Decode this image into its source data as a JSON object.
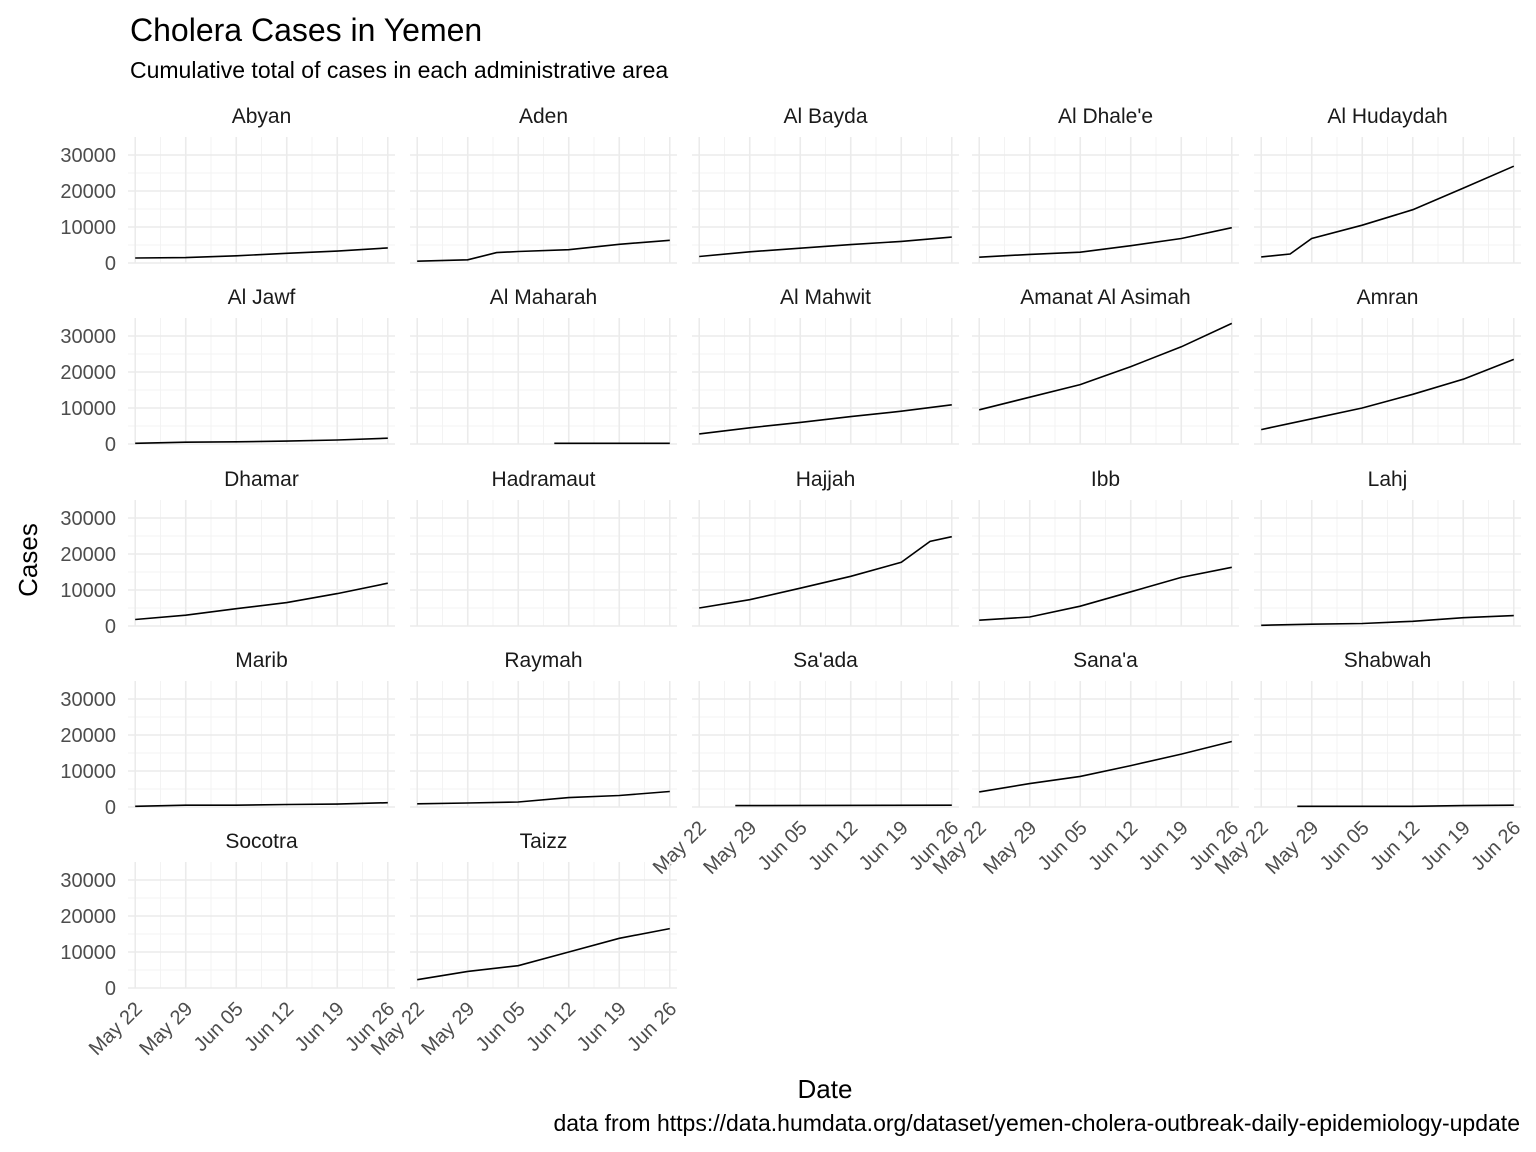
{
  "chart_data": {
    "type": "line",
    "title": "Cholera Cases in Yemen",
    "subtitle": "Cumulative total of cases in each administrative area",
    "xlabel": "Date",
    "ylabel": "Cases",
    "caption": "data from https://data.humdata.org/dataset/yemen-cholera-outbreak-daily-epidemiology-update",
    "xlim": [
      "2017-05-21",
      "2017-06-27"
    ],
    "ylim": [
      0,
      35000
    ],
    "x_ticks": [
      "May 22",
      "May 29",
      "Jun 05",
      "Jun 12",
      "Jun 19",
      "Jun 26"
    ],
    "y_ticks": [
      "0",
      "10000",
      "20000",
      "30000"
    ],
    "grid": true,
    "legend": "none",
    "facets": [
      {
        "name": "Abyan",
        "series": [
          {
            "date": "2017-05-22",
            "cases": 1400
          },
          {
            "date": "2017-05-29",
            "cases": 1500
          },
          {
            "date": "2017-06-05",
            "cases": 2000
          },
          {
            "date": "2017-06-12",
            "cases": 2700
          },
          {
            "date": "2017-06-19",
            "cases": 3300
          },
          {
            "date": "2017-06-26",
            "cases": 4200
          }
        ]
      },
      {
        "name": "Aden",
        "series": [
          {
            "date": "2017-05-22",
            "cases": 500
          },
          {
            "date": "2017-05-29",
            "cases": 900
          },
          {
            "date": "2017-06-02",
            "cases": 2900
          },
          {
            "date": "2017-06-05",
            "cases": 3200
          },
          {
            "date": "2017-06-12",
            "cases": 3700
          },
          {
            "date": "2017-06-19",
            "cases": 5200
          },
          {
            "date": "2017-06-26",
            "cases": 6300
          }
        ]
      },
      {
        "name": "Al Bayda",
        "series": [
          {
            "date": "2017-05-22",
            "cases": 1800
          },
          {
            "date": "2017-05-29",
            "cases": 3100
          },
          {
            "date": "2017-06-05",
            "cases": 4100
          },
          {
            "date": "2017-06-12",
            "cases": 5100
          },
          {
            "date": "2017-06-19",
            "cases": 6000
          },
          {
            "date": "2017-06-26",
            "cases": 7200
          }
        ]
      },
      {
        "name": "Al Dhale'e",
        "series": [
          {
            "date": "2017-05-22",
            "cases": 1600
          },
          {
            "date": "2017-05-29",
            "cases": 2400
          },
          {
            "date": "2017-06-05",
            "cases": 3000
          },
          {
            "date": "2017-06-12",
            "cases": 4800
          },
          {
            "date": "2017-06-19",
            "cases": 6800
          },
          {
            "date": "2017-06-26",
            "cases": 9800
          }
        ]
      },
      {
        "name": "Al Hudaydah",
        "series": [
          {
            "date": "2017-05-22",
            "cases": 1700
          },
          {
            "date": "2017-05-26",
            "cases": 2500
          },
          {
            "date": "2017-05-29",
            "cases": 6800
          },
          {
            "date": "2017-06-05",
            "cases": 10500
          },
          {
            "date": "2017-06-12",
            "cases": 14800
          },
          {
            "date": "2017-06-19",
            "cases": 20800
          },
          {
            "date": "2017-06-26",
            "cases": 26900
          }
        ]
      },
      {
        "name": "Al Jawf",
        "series": [
          {
            "date": "2017-05-22",
            "cases": 200
          },
          {
            "date": "2017-05-29",
            "cases": 500
          },
          {
            "date": "2017-06-05",
            "cases": 600
          },
          {
            "date": "2017-06-12",
            "cases": 800
          },
          {
            "date": "2017-06-19",
            "cases": 1100
          },
          {
            "date": "2017-06-26",
            "cases": 1600
          }
        ]
      },
      {
        "name": "Al Maharah",
        "series": [
          {
            "date": "2017-06-10",
            "cases": 200
          },
          {
            "date": "2017-06-26",
            "cases": 200
          }
        ]
      },
      {
        "name": "Al Mahwit",
        "series": [
          {
            "date": "2017-05-22",
            "cases": 2800
          },
          {
            "date": "2017-05-29",
            "cases": 4500
          },
          {
            "date": "2017-06-05",
            "cases": 6000
          },
          {
            "date": "2017-06-12",
            "cases": 7600
          },
          {
            "date": "2017-06-19",
            "cases": 9100
          },
          {
            "date": "2017-06-26",
            "cases": 10900
          }
        ]
      },
      {
        "name": "Amanat Al Asimah",
        "series": [
          {
            "date": "2017-05-22",
            "cases": 9500
          },
          {
            "date": "2017-05-29",
            "cases": 13000
          },
          {
            "date": "2017-06-05",
            "cases": 16500
          },
          {
            "date": "2017-06-12",
            "cases": 21500
          },
          {
            "date": "2017-06-19",
            "cases": 27000
          },
          {
            "date": "2017-06-26",
            "cases": 33500
          }
        ]
      },
      {
        "name": "Amran",
        "series": [
          {
            "date": "2017-05-22",
            "cases": 4000
          },
          {
            "date": "2017-05-29",
            "cases": 7000
          },
          {
            "date": "2017-06-05",
            "cases": 10000
          },
          {
            "date": "2017-06-12",
            "cases": 13800
          },
          {
            "date": "2017-06-19",
            "cases": 18000
          },
          {
            "date": "2017-06-26",
            "cases": 23500
          }
        ]
      },
      {
        "name": "Dhamar",
        "series": [
          {
            "date": "2017-05-22",
            "cases": 1800
          },
          {
            "date": "2017-05-29",
            "cases": 3000
          },
          {
            "date": "2017-06-05",
            "cases": 4800
          },
          {
            "date": "2017-06-12",
            "cases": 6500
          },
          {
            "date": "2017-06-19",
            "cases": 9000
          },
          {
            "date": "2017-06-26",
            "cases": 11900
          }
        ]
      },
      {
        "name": "Hadramaut",
        "series": []
      },
      {
        "name": "Hajjah",
        "series": [
          {
            "date": "2017-05-22",
            "cases": 5000
          },
          {
            "date": "2017-05-29",
            "cases": 7300
          },
          {
            "date": "2017-06-05",
            "cases": 10500
          },
          {
            "date": "2017-06-12",
            "cases": 13800
          },
          {
            "date": "2017-06-19",
            "cases": 17700
          },
          {
            "date": "2017-06-23",
            "cases": 23500
          },
          {
            "date": "2017-06-26",
            "cases": 24800
          }
        ]
      },
      {
        "name": "Ibb",
        "series": [
          {
            "date": "2017-05-22",
            "cases": 1600
          },
          {
            "date": "2017-05-29",
            "cases": 2500
          },
          {
            "date": "2017-06-05",
            "cases": 5500
          },
          {
            "date": "2017-06-12",
            "cases": 9500
          },
          {
            "date": "2017-06-19",
            "cases": 13500
          },
          {
            "date": "2017-06-26",
            "cases": 16300
          }
        ]
      },
      {
        "name": "Lahj",
        "series": [
          {
            "date": "2017-05-22",
            "cases": 200
          },
          {
            "date": "2017-05-29",
            "cases": 500
          },
          {
            "date": "2017-06-05",
            "cases": 700
          },
          {
            "date": "2017-06-12",
            "cases": 1300
          },
          {
            "date": "2017-06-19",
            "cases": 2300
          },
          {
            "date": "2017-06-26",
            "cases": 2900
          }
        ]
      },
      {
        "name": "Marib",
        "series": [
          {
            "date": "2017-05-22",
            "cases": 200
          },
          {
            "date": "2017-05-29",
            "cases": 500
          },
          {
            "date": "2017-06-05",
            "cases": 500
          },
          {
            "date": "2017-06-12",
            "cases": 700
          },
          {
            "date": "2017-06-19",
            "cases": 800
          },
          {
            "date": "2017-06-26",
            "cases": 1200
          }
        ]
      },
      {
        "name": "Raymah",
        "series": [
          {
            "date": "2017-05-22",
            "cases": 900
          },
          {
            "date": "2017-05-29",
            "cases": 1100
          },
          {
            "date": "2017-06-05",
            "cases": 1400
          },
          {
            "date": "2017-06-12",
            "cases": 2600
          },
          {
            "date": "2017-06-19",
            "cases": 3200
          },
          {
            "date": "2017-06-26",
            "cases": 4300
          }
        ]
      },
      {
        "name": "Sa'ada",
        "series": [
          {
            "date": "2017-05-27",
            "cases": 400
          },
          {
            "date": "2017-06-26",
            "cases": 500
          }
        ]
      },
      {
        "name": "Sana'a",
        "series": [
          {
            "date": "2017-05-22",
            "cases": 4200
          },
          {
            "date": "2017-05-29",
            "cases": 6500
          },
          {
            "date": "2017-06-05",
            "cases": 8500
          },
          {
            "date": "2017-06-12",
            "cases": 11500
          },
          {
            "date": "2017-06-19",
            "cases": 14700
          },
          {
            "date": "2017-06-26",
            "cases": 18200
          }
        ]
      },
      {
        "name": "Shabwah",
        "series": [
          {
            "date": "2017-05-27",
            "cases": 200
          },
          {
            "date": "2017-06-12",
            "cases": 200
          },
          {
            "date": "2017-06-19",
            "cases": 400
          },
          {
            "date": "2017-06-26",
            "cases": 500
          }
        ]
      },
      {
        "name": "Socotra",
        "series": []
      },
      {
        "name": "Taizz",
        "series": [
          {
            "date": "2017-05-22",
            "cases": 2300
          },
          {
            "date": "2017-05-29",
            "cases": 4600
          },
          {
            "date": "2017-06-05",
            "cases": 6200
          },
          {
            "date": "2017-06-12",
            "cases": 10000
          },
          {
            "date": "2017-06-19",
            "cases": 13800
          },
          {
            "date": "2017-06-26",
            "cases": 16500
          }
        ]
      }
    ]
  }
}
